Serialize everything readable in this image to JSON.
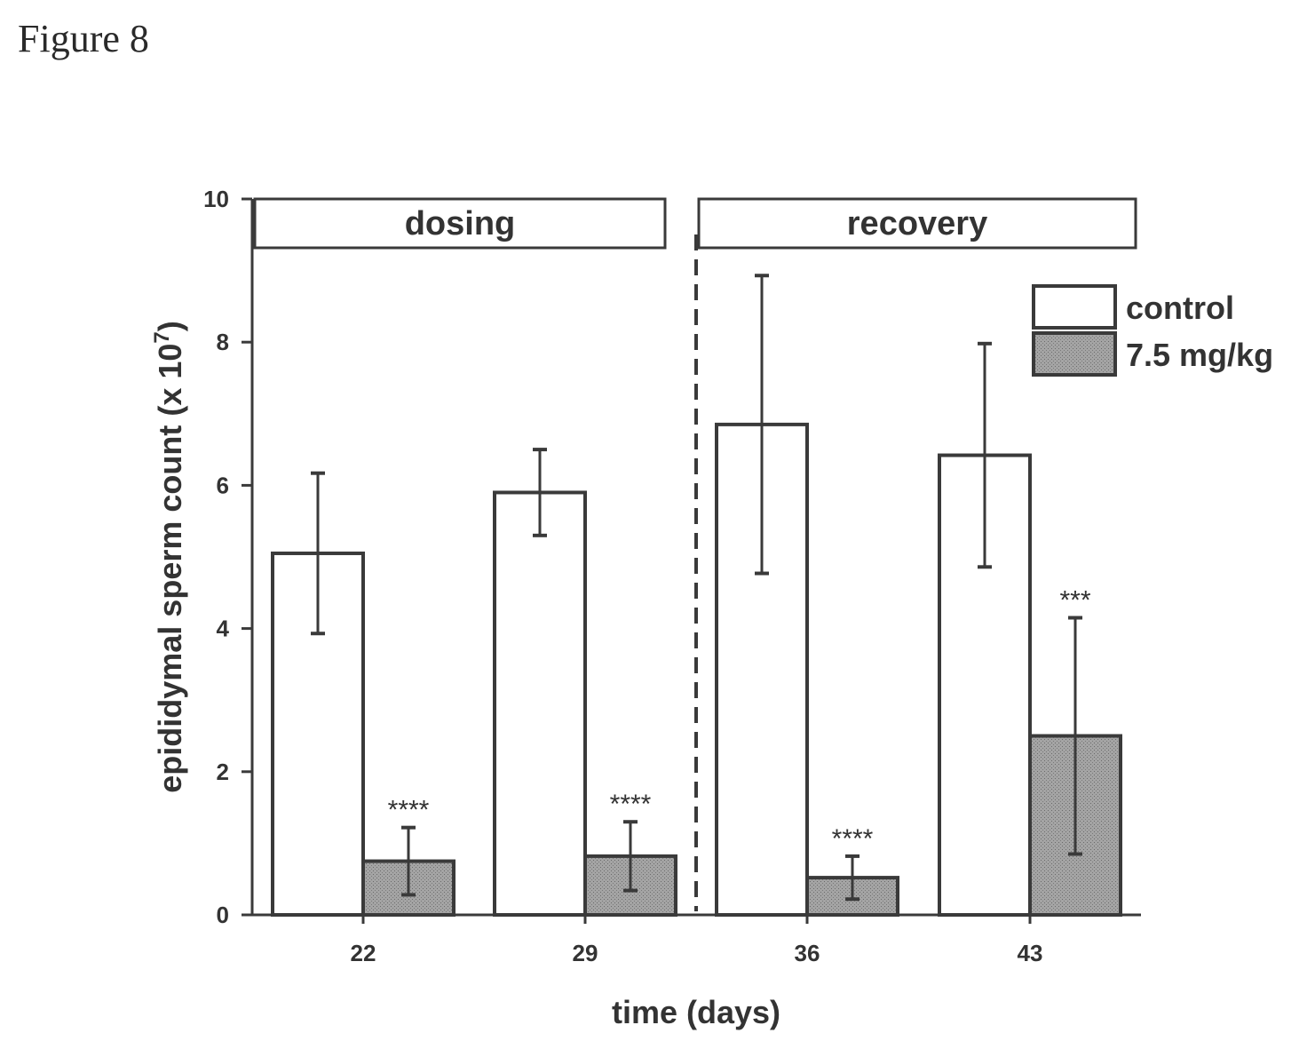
{
  "figure_label": "Figure 8",
  "colors": {
    "axis": "#3a3a3a",
    "control_fill": "#ffffff",
    "treated_fill": "#9a9a9a"
  },
  "chart_data": {
    "type": "bar",
    "xlabel": "time (days)",
    "ylabel_main": "epididymal sperm count (x 10",
    "ylabel_exp": "7",
    "ylabel_close": ")",
    "ylim": [
      0,
      10
    ],
    "yticks": [
      0,
      2,
      4,
      6,
      8,
      10
    ],
    "categories": [
      "22",
      "29",
      "36",
      "43"
    ],
    "phases": [
      {
        "label": "dosing",
        "categories": [
          "22",
          "29"
        ]
      },
      {
        "label": "recovery",
        "categories": [
          "36",
          "43"
        ]
      }
    ],
    "phase_divider": "dashed line between 29 and 36",
    "legend_position": "top-right",
    "series": [
      {
        "name": "control",
        "values": [
          5.05,
          5.9,
          6.85,
          6.42
        ],
        "errors": [
          1.12,
          0.6,
          2.08,
          1.56
        ]
      },
      {
        "name": "7.5 mg/kg",
        "values": [
          0.75,
          0.82,
          0.52,
          2.5
        ],
        "errors": [
          0.47,
          0.48,
          0.3,
          1.65
        ]
      }
    ],
    "annotations": [
      {
        "series": "7.5 mg/kg",
        "category": "22",
        "text": "****"
      },
      {
        "series": "7.5 mg/kg",
        "category": "29",
        "text": "****"
      },
      {
        "series": "7.5 mg/kg",
        "category": "36",
        "text": "****"
      },
      {
        "series": "7.5 mg/kg",
        "category": "43",
        "text": "***"
      }
    ]
  }
}
